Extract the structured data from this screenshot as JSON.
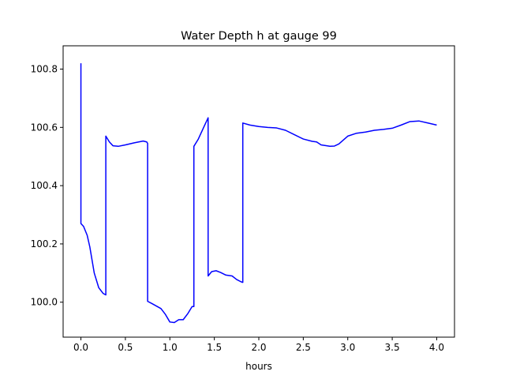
{
  "chart_data": {
    "type": "line",
    "title": "Water Depth h at gauge 99",
    "xlabel": "hours",
    "ylabel": "",
    "xlim": [
      -0.2,
      4.2
    ],
    "ylim": [
      99.88,
      100.88
    ],
    "xticks": [
      0.0,
      0.5,
      1.0,
      1.5,
      2.0,
      2.5,
      3.0,
      3.5,
      4.0
    ],
    "xtick_labels": [
      "0.0",
      "0.5",
      "1.0",
      "1.5",
      "2.0",
      "2.5",
      "3.0",
      "3.5",
      "4.0"
    ],
    "yticks": [
      100.0,
      100.2,
      100.4,
      100.6,
      100.8
    ],
    "ytick_labels": [
      "100.0",
      "100.2",
      "100.4",
      "100.6",
      "100.8"
    ],
    "grid": false,
    "series": [
      {
        "color": "#0000ff",
        "x": [
          0.0,
          0.0,
          0.03,
          0.07,
          0.1,
          0.15,
          0.2,
          0.25,
          0.28,
          0.28,
          0.32,
          0.36,
          0.42,
          0.5,
          0.6,
          0.7,
          0.74,
          0.75,
          0.75,
          0.8,
          0.9,
          0.95,
          1.0,
          1.05,
          1.1,
          1.15,
          1.2,
          1.25,
          1.27,
          1.27,
          1.32,
          1.38,
          1.43,
          1.43,
          1.47,
          1.52,
          1.57,
          1.63,
          1.7,
          1.75,
          1.8,
          1.82,
          1.82,
          1.9,
          2.0,
          2.1,
          2.2,
          2.3,
          2.4,
          2.5,
          2.6,
          2.65,
          2.7,
          2.8,
          2.85,
          2.9,
          3.0,
          3.1,
          3.2,
          3.3,
          3.4,
          3.5,
          3.6,
          3.7,
          3.8,
          3.9,
          4.0
        ],
        "y": [
          100.82,
          100.27,
          100.26,
          100.23,
          100.19,
          100.1,
          100.05,
          100.03,
          100.025,
          100.57,
          100.55,
          100.537,
          100.535,
          100.54,
          100.547,
          100.553,
          100.55,
          100.545,
          100.003,
          99.995,
          99.978,
          99.958,
          99.932,
          99.93,
          99.94,
          99.94,
          99.96,
          99.985,
          99.985,
          100.535,
          100.56,
          100.6,
          100.633,
          100.09,
          100.105,
          100.108,
          100.102,
          100.093,
          100.09,
          100.078,
          100.07,
          100.068,
          100.615,
          100.608,
          100.603,
          100.6,
          100.598,
          100.59,
          100.575,
          100.56,
          100.552,
          100.55,
          100.54,
          100.535,
          100.536,
          100.543,
          100.57,
          100.58,
          100.584,
          100.59,
          100.593,
          100.597,
          100.608,
          100.62,
          100.622,
          100.615,
          100.608
        ]
      }
    ]
  }
}
